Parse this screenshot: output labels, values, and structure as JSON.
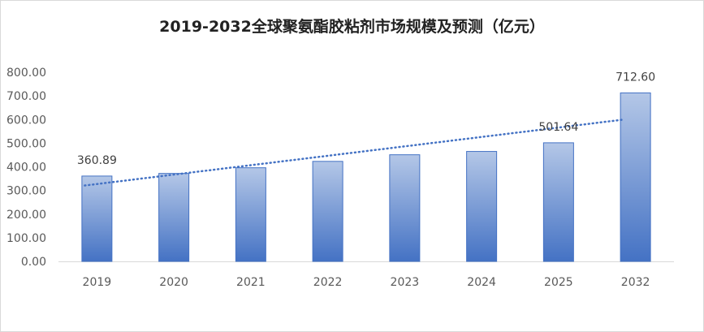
{
  "chart_data": {
    "type": "bar",
    "title": "2019-2032全球聚氨酯胶粘剂市场规模及预测（亿元）",
    "categories": [
      "2019",
      "2020",
      "2021",
      "2022",
      "2023",
      "2024",
      "2025",
      "2032"
    ],
    "values": [
      360.89,
      372,
      396,
      423,
      451,
      465,
      501.64,
      712.6
    ],
    "data_labels": [
      "360.89",
      "",
      "",
      "",
      "",
      "",
      "501.64",
      "712.60"
    ],
    "y_ticks": [
      "0.00",
      "100.00",
      "200.00",
      "300.00",
      "400.00",
      "500.00",
      "600.00",
      "700.00",
      "800.00"
    ],
    "ylim": [
      0,
      800
    ],
    "trendline": "linear",
    "grid": false,
    "colors": {
      "bar_top": "#b4c7e7",
      "bar_bottom": "#4472c4",
      "bar_border": "#4472c4",
      "trend": "#4472c4"
    }
  }
}
